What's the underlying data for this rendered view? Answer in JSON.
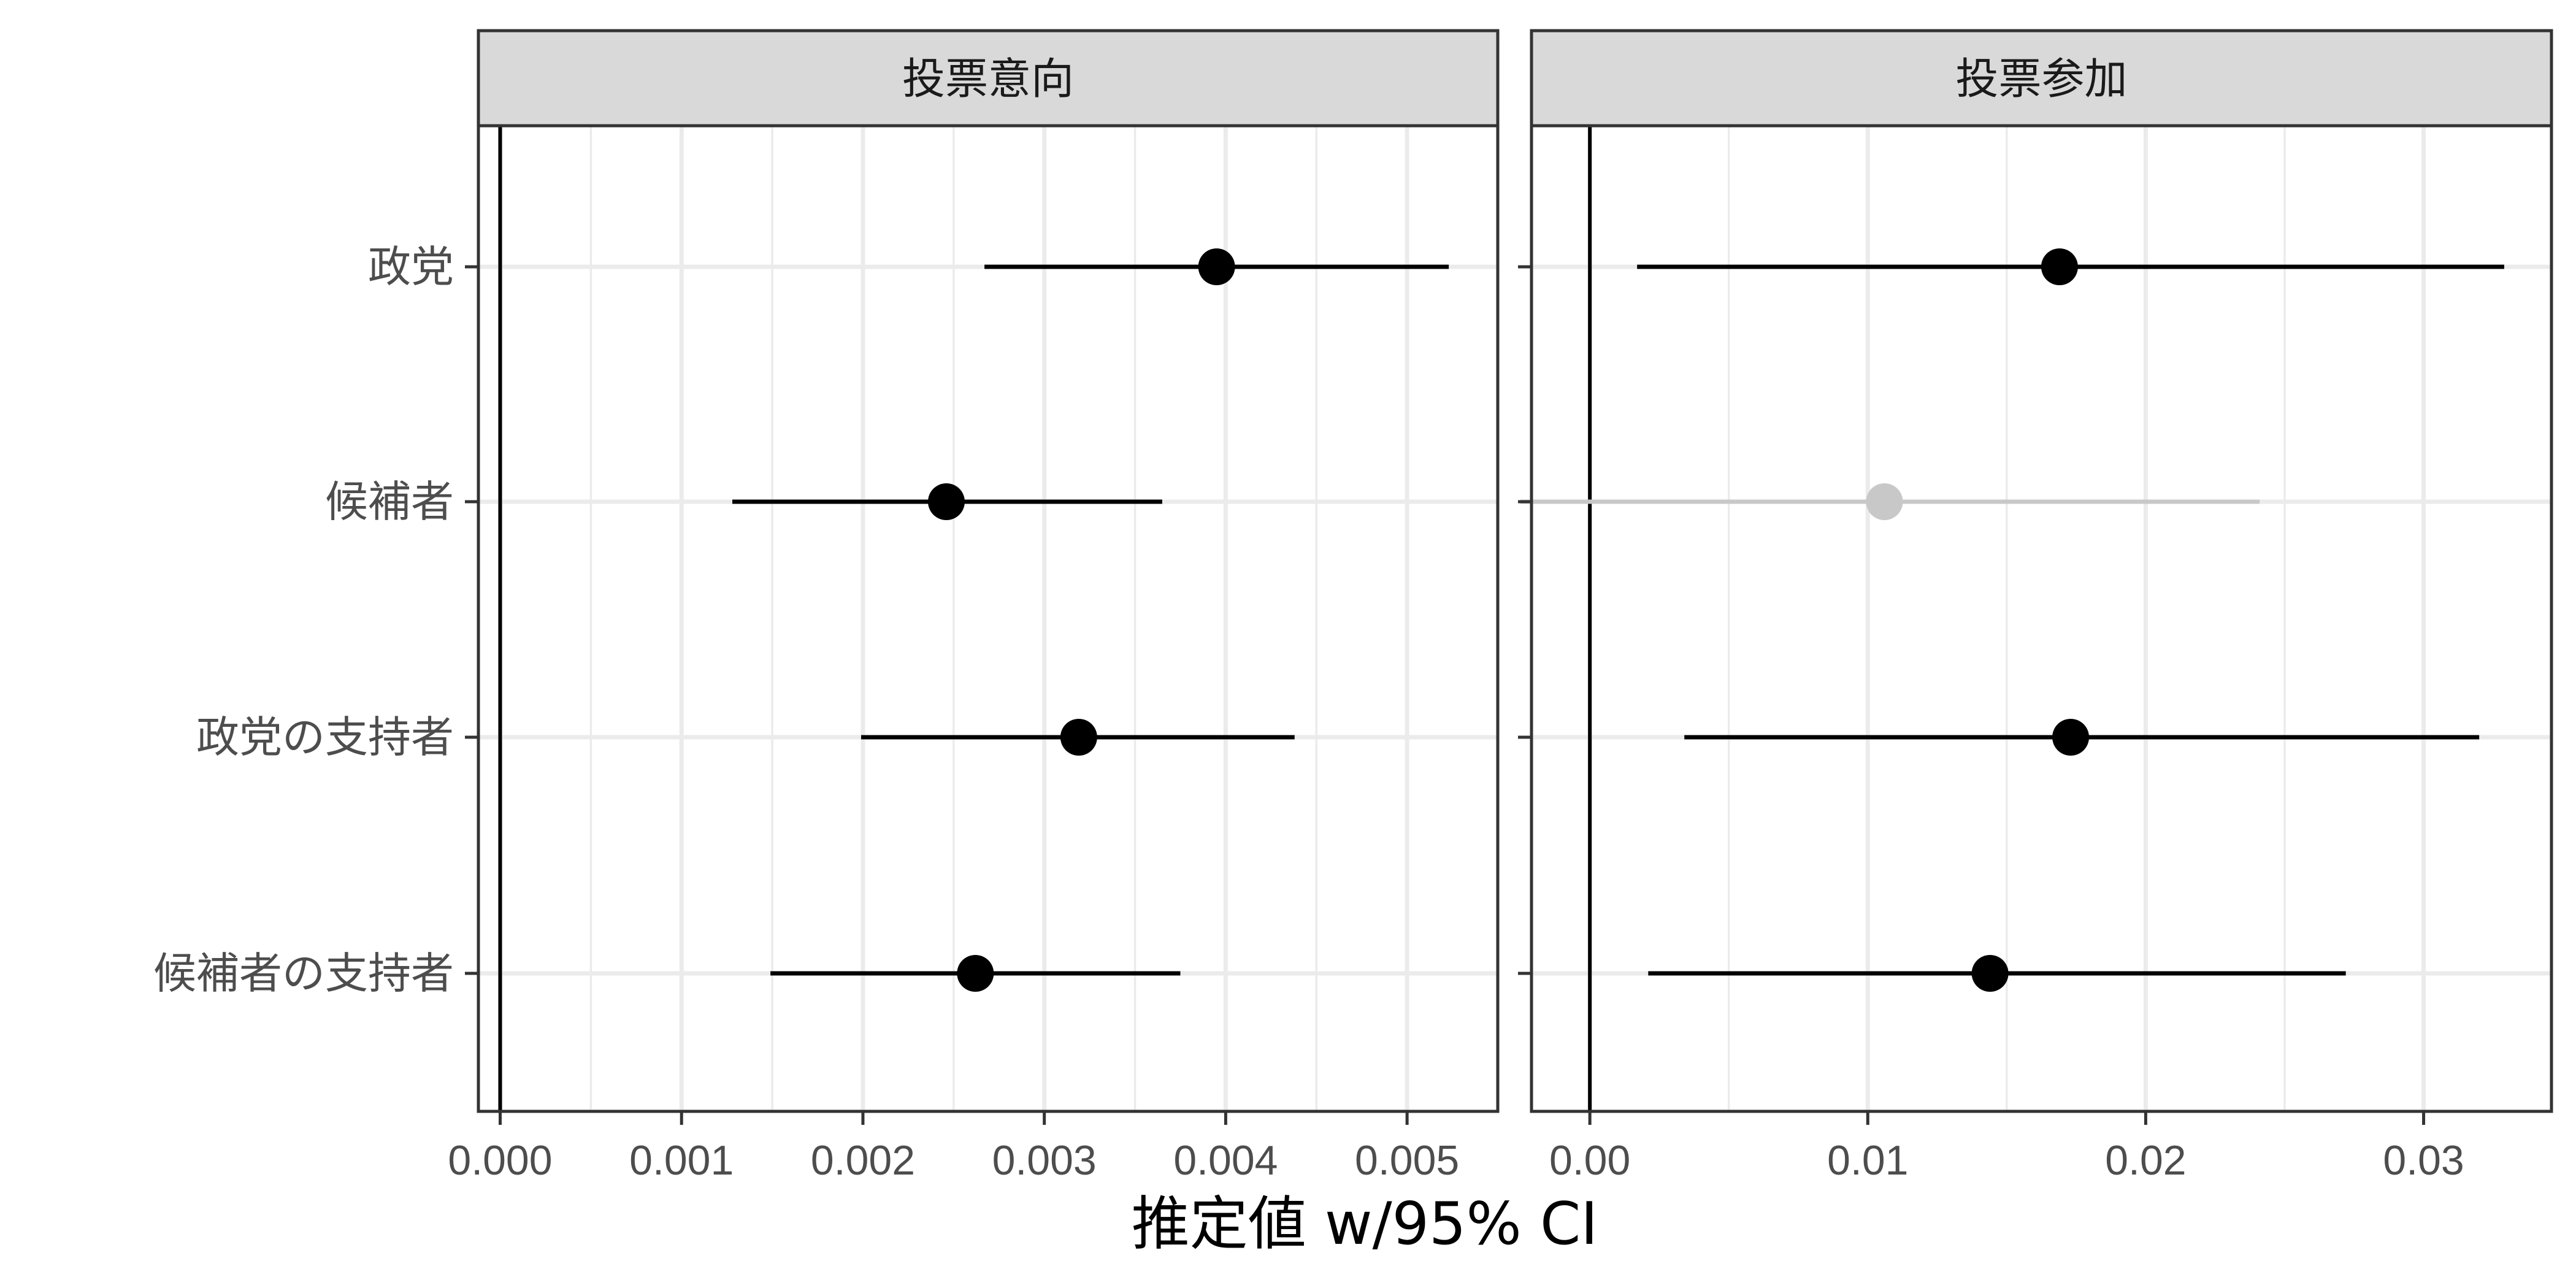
{
  "chart_data": {
    "type": "scatter",
    "subtype": "coefficient-plot",
    "xlabel": "推定値 w/95% CI",
    "categories": [
      "政党",
      "候補者",
      "政党の支持者",
      "候補者の支持者"
    ],
    "grid": true,
    "colors": {
      "significant": "#000000",
      "not_significant": "#c8c8c8"
    },
    "panels": [
      {
        "title": "投票意向",
        "xlim": [
          -0.00012,
          0.0055
        ],
        "ticks": [
          "0.000",
          "0.001",
          "0.002",
          "0.003",
          "0.004",
          "0.005"
        ],
        "tick_values": [
          0,
          0.001,
          0.002,
          0.003,
          0.004,
          0.005
        ],
        "estimates": [
          {
            "category": "政党",
            "estimate": 0.00395,
            "ci": [
              0.00267,
              0.00523
            ],
            "significant": true
          },
          {
            "category": "候補者",
            "estimate": 0.00246,
            "ci": [
              0.00128,
              0.00365
            ],
            "significant": true
          },
          {
            "category": "政党の支持者",
            "estimate": 0.00319,
            "ci": [
              0.00199,
              0.00438
            ],
            "significant": true
          },
          {
            "category": "候補者の支持者",
            "estimate": 0.00262,
            "ci": [
              0.00149,
              0.00375
            ],
            "significant": true
          }
        ]
      },
      {
        "title": "投票参加",
        "xlim": [
          -0.0021,
          0.0346
        ],
        "ticks": [
          "0.00",
          "0.01",
          "0.02",
          "0.03"
        ],
        "tick_values": [
          0,
          0.01,
          0.02,
          0.03
        ],
        "estimates": [
          {
            "category": "政党",
            "estimate": 0.0169,
            "ci": [
              0.0017,
              0.0329
            ],
            "significant": true
          },
          {
            "category": "候補者",
            "estimate": 0.0106,
            "ci": [
              -0.0025,
              0.0241
            ],
            "significant": false
          },
          {
            "category": "政党の支持者",
            "estimate": 0.0173,
            "ci": [
              0.0034,
              0.032
            ],
            "significant": true
          },
          {
            "category": "候補者の支持者",
            "estimate": 0.0144,
            "ci": [
              0.0021,
              0.0272
            ],
            "significant": true
          }
        ]
      }
    ]
  }
}
